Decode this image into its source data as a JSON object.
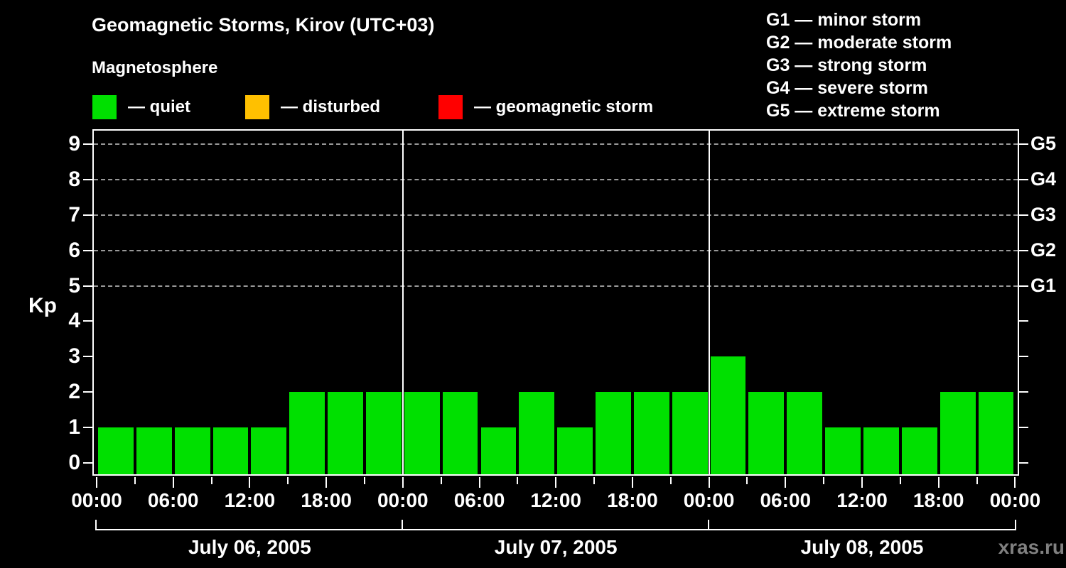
{
  "title": "Geomagnetic Storms, Kirov (UTC+03)",
  "subtitle": "Magnetosphere",
  "kp_legend": {
    "items": [
      {
        "name": "quiet",
        "label": "— quiet",
        "color": "#00E000"
      },
      {
        "name": "disturbed",
        "label": "— disturbed",
        "color": "#FFC000"
      },
      {
        "name": "geomagnetic-storm",
        "label": "— geomagnetic storm",
        "color": "#FF0000"
      }
    ]
  },
  "g_scale_legend": {
    "lines": [
      "G1 — minor storm",
      "G2 — moderate storm",
      "G3 — strong storm",
      "G4 — severe storm",
      "G5 — extreme storm"
    ]
  },
  "watermark": "xras.ru",
  "colors": {
    "background": "#000000",
    "text": "#FFFFFF",
    "grid": "#999999",
    "axis": "#FFFFFF",
    "watermark": "#808080",
    "bar_quiet": "#00E000",
    "bar_disturbed": "#FFC000",
    "bar_storm": "#FF0000"
  },
  "chart_data": {
    "type": "bar",
    "title": "Geomagnetic Storms, Kirov (UTC+03)",
    "ylabel": "Kp",
    "ylim": [
      0,
      9
    ],
    "y_ticks": [
      0,
      1,
      2,
      3,
      4,
      5,
      6,
      7,
      8,
      9
    ],
    "gridlines_at_kp": [
      5,
      6,
      7,
      8,
      9
    ],
    "gridline_style": "dashed",
    "right_axis": [
      {
        "kp": 5,
        "label": "G1"
      },
      {
        "kp": 6,
        "label": "G2"
      },
      {
        "kp": 7,
        "label": "G3"
      },
      {
        "kp": 8,
        "label": "G4"
      },
      {
        "kp": 9,
        "label": "G5"
      }
    ],
    "bar_interval_hours": 3,
    "x_tick_labels_6h": [
      "00:00",
      "06:00",
      "12:00",
      "18:00",
      "00:00",
      "06:00",
      "12:00",
      "18:00",
      "00:00",
      "06:00",
      "12:00",
      "18:00",
      "00:00"
    ],
    "days": [
      {
        "date": "July 06, 2005",
        "kp_values": [
          1,
          1,
          1,
          1,
          1,
          2,
          2,
          2
        ]
      },
      {
        "date": "July 07, 2005",
        "kp_values": [
          2,
          2,
          1,
          2,
          1,
          2,
          2,
          2
        ]
      },
      {
        "date": "July 08, 2005",
        "kp_values": [
          3,
          2,
          2,
          1,
          1,
          1,
          2,
          2
        ]
      }
    ]
  }
}
